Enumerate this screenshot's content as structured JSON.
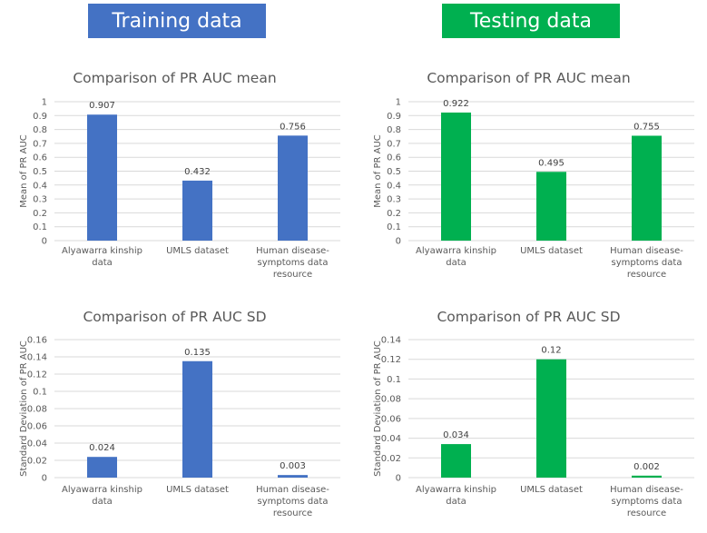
{
  "banners": {
    "training": "Training data",
    "testing": "Testing data"
  },
  "colors": {
    "training": "#4472c4",
    "testing": "#00b050",
    "grid": "#d9d9d9",
    "text": "#595959"
  },
  "chart_data": [
    {
      "id": "train-mean",
      "group": "training",
      "type": "bar",
      "title": "Comparison of PR AUC mean",
      "ylabel": "Mean of PR AUC",
      "categories": [
        [
          "Alyawarra kinship",
          "data"
        ],
        [
          "UMLS dataset"
        ],
        [
          "Human disease-",
          "symptoms data",
          "resource"
        ]
      ],
      "values": [
        0.907,
        0.432,
        0.756
      ],
      "value_labels": [
        "0.907",
        "0.432",
        "0.756"
      ],
      "ylim": [
        0,
        1
      ],
      "yticks": [
        "0",
        "0.1",
        "0.2",
        "0.3",
        "0.4",
        "0.5",
        "0.6",
        "0.7",
        "0.8",
        "0.9",
        "1"
      ],
      "grid": true
    },
    {
      "id": "test-mean",
      "group": "testing",
      "type": "bar",
      "title": "Comparison of PR AUC mean",
      "ylabel": "Mean of PR AUC",
      "categories": [
        [
          "Alyawarra kinship",
          "data"
        ],
        [
          "UMLS dataset"
        ],
        [
          "Human disease-",
          "symptoms data",
          "resource"
        ]
      ],
      "values": [
        0.922,
        0.495,
        0.755
      ],
      "value_labels": [
        "0.922",
        "0.495",
        "0.755"
      ],
      "ylim": [
        0,
        1
      ],
      "yticks": [
        "0",
        "0.1",
        "0.2",
        "0.3",
        "0.4",
        "0.5",
        "0.6",
        "0.7",
        "0.8",
        "0.9",
        "1"
      ],
      "grid": true
    },
    {
      "id": "train-sd",
      "group": "training",
      "type": "bar",
      "title": "Comparison of PR AUC SD",
      "ylabel": "Standard Deviation of PR AUC",
      "categories": [
        [
          "Alyawarra kinship",
          "data"
        ],
        [
          "UMLS dataset"
        ],
        [
          "Human disease-",
          "symptoms data",
          "resource"
        ]
      ],
      "values": [
        0.024,
        0.135,
        0.003
      ],
      "value_labels": [
        "0.024",
        "0.135",
        "0.003"
      ],
      "ylim": [
        0,
        0.16
      ],
      "yticks": [
        "0",
        "0.02",
        "0.04",
        "0.06",
        "0.08",
        "0.1",
        "0.12",
        "0.14",
        "0.16"
      ],
      "grid": true
    },
    {
      "id": "test-sd",
      "group": "testing",
      "type": "bar",
      "title": "Comparison of PR AUC SD",
      "ylabel": "Standard Deviation of PR AUC",
      "categories": [
        [
          "Alyawarra kinship",
          "data"
        ],
        [
          "UMLS dataset"
        ],
        [
          "Human disease-",
          "symptoms data",
          "resource"
        ]
      ],
      "values": [
        0.034,
        0.12,
        0.002
      ],
      "value_labels": [
        "0.034",
        "0.12",
        "0.002"
      ],
      "ylim": [
        0,
        0.14
      ],
      "yticks": [
        "0",
        "0.02",
        "0.04",
        "0.06",
        "0.08",
        "0.1",
        "0.12",
        "0.14"
      ],
      "grid": true
    }
  ]
}
